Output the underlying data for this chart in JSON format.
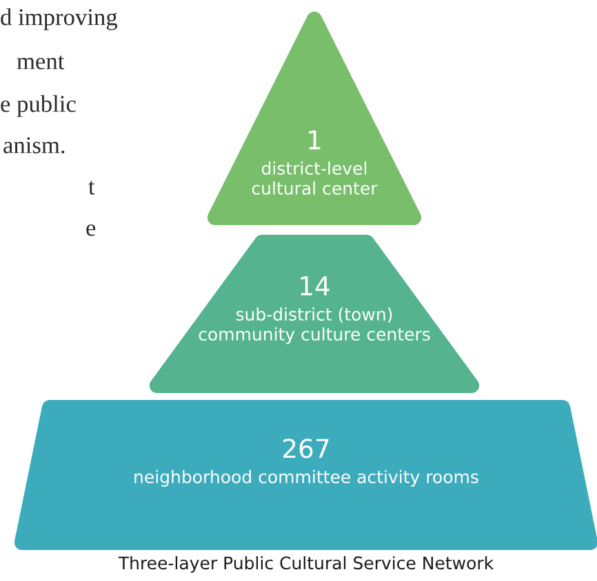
{
  "chart_data": {
    "type": "other",
    "title": "Three-layer Public Cultural Service Network",
    "categories": [
      "district-level\ncultural center",
      "sub-district (town)\ncommunity culture centers",
      "neighborhood committee activity rooms"
    ],
    "values": [
      1,
      14,
      267
    ],
    "data_labels": true,
    "colors": [
      "#78be6b",
      "#55b48f",
      "#3cacbd"
    ],
    "annotations": [
      "d improving",
      "ment",
      "e public",
      "anism.",
      "t",
      "e"
    ]
  }
}
